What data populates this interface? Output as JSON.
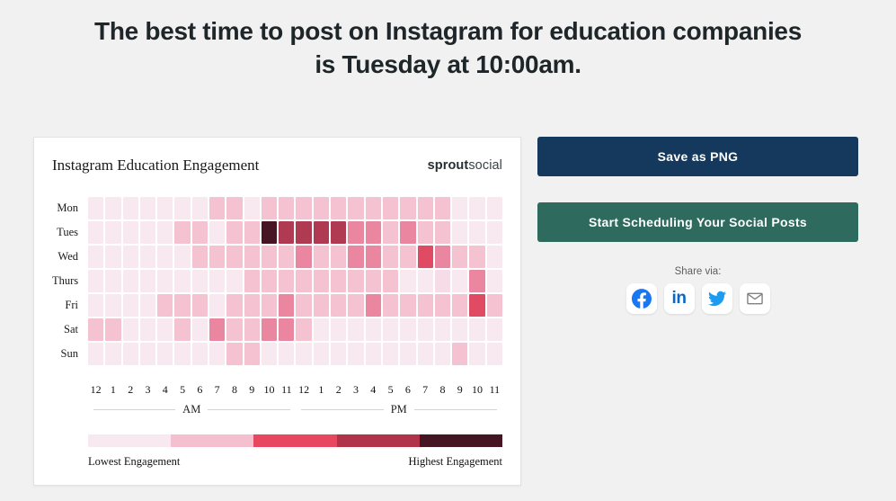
{
  "page": {
    "background": "#f2f1f1"
  },
  "heading": {
    "line1": "The best time to post on Instagram for education companies",
    "line2": "is Tuesday at 10:00am.",
    "color": "#1e2629"
  },
  "card": {
    "title": "Instagram Education Engagement",
    "logo_bold": "sprout",
    "logo_regular": "social"
  },
  "chart_data": {
    "type": "heatmap",
    "title": "Instagram Education Engagement",
    "rows": [
      "Mon",
      "Tues",
      "Wed",
      "Thurs",
      "Fri",
      "Sat",
      "Sun"
    ],
    "columns": [
      "12",
      "1",
      "2",
      "3",
      "4",
      "5",
      "6",
      "7",
      "8",
      "9",
      "10",
      "11",
      "12",
      "1",
      "2",
      "3",
      "4",
      "5",
      "6",
      "7",
      "8",
      "9",
      "10",
      "11"
    ],
    "column_groups": [
      "AM",
      "PM"
    ],
    "value_scale": "engagement level 0 (lowest) to 7 (highest)",
    "values": [
      [
        0,
        0,
        0,
        0,
        0,
        0,
        0,
        2,
        2,
        0,
        2,
        2,
        2,
        2,
        2,
        2,
        2,
        2,
        2,
        2,
        2,
        0,
        0,
        0
      ],
      [
        0,
        0,
        0,
        0,
        0,
        2,
        2,
        0,
        2,
        2,
        7,
        6,
        6,
        6,
        6,
        4,
        4,
        2,
        4,
        2,
        2,
        0,
        0,
        0
      ],
      [
        0,
        0,
        0,
        0,
        0,
        0,
        2,
        2,
        2,
        2,
        2,
        2,
        4,
        2,
        2,
        4,
        4,
        2,
        2,
        5,
        4,
        2,
        2,
        0
      ],
      [
        0,
        0,
        0,
        0,
        0,
        0,
        0,
        0,
        0,
        2,
        2,
        2,
        2,
        2,
        2,
        2,
        2,
        2,
        0,
        0,
        1,
        0,
        4,
        0
      ],
      [
        0,
        0,
        0,
        0,
        2,
        2,
        2,
        0,
        2,
        2,
        2,
        4,
        2,
        2,
        2,
        2,
        4,
        2,
        2,
        2,
        2,
        2,
        5,
        2
      ],
      [
        2,
        2,
        0,
        0,
        0,
        2,
        0,
        4,
        2,
        2,
        4,
        4,
        2,
        0,
        0,
        0,
        0,
        0,
        0,
        0,
        0,
        0,
        0,
        0
      ],
      [
        0,
        0,
        0,
        0,
        0,
        0,
        0,
        0,
        2,
        2,
        0,
        0,
        0,
        0,
        0,
        0,
        0,
        0,
        0,
        0,
        0,
        2,
        0,
        0
      ]
    ],
    "palette": {
      "0": "#f7e9ef",
      "1": "#f6dce6",
      "2": "#f5c2d2",
      "3": "#f0a5bb",
      "4": "#ea86a0",
      "5": "#e04a63",
      "6": "#b03a51",
      "7": "#471524"
    },
    "best_time": {
      "day": "Tues",
      "hour": "10",
      "period": "AM",
      "value": 7
    },
    "legend": {
      "segments": [
        "#f7e9ef",
        "#f4c0d0",
        "#e8485f",
        "#b0334a",
        "#451523"
      ],
      "low_label": "Lowest Engagement",
      "high_label": "Highest Engagement"
    }
  },
  "actions": {
    "save_label": "Save as PNG",
    "save_color": "#14395c",
    "schedule_label": "Start Scheduling Your Social Posts",
    "schedule_color": "#2f6a5e",
    "share_label": "Share via:",
    "share_icons": [
      {
        "name": "facebook",
        "color": "#1877f2"
      },
      {
        "name": "linkedin",
        "color": "#0a66c2"
      },
      {
        "name": "twitter",
        "color": "#1d9bf0"
      },
      {
        "name": "email",
        "color": "#808080"
      }
    ]
  }
}
